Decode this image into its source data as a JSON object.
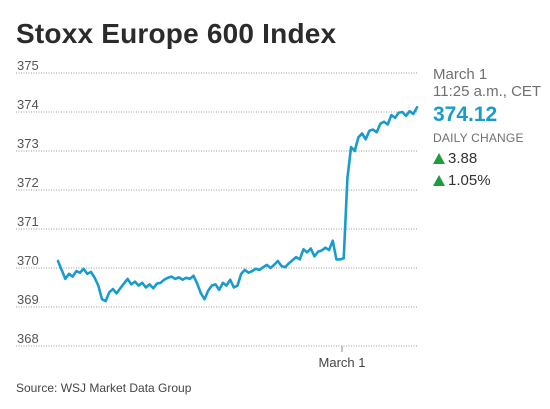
{
  "title": "Stoxx Europe 600 Index",
  "source": "Source: WSJ Market Data Group",
  "sidebar": {
    "date": "March 1",
    "time": "11:25 a.m., CET",
    "price": "374.12",
    "daily_change_label": "DAILY CHANGE",
    "change_points": "3.88",
    "change_percent": "1.05%"
  },
  "colors": {
    "line": "#1a9bd0",
    "up": "#1f9d3c",
    "grid": "#9a9a9a",
    "text": "#2b2b2b"
  },
  "chart_data": {
    "type": "line",
    "title": "Stoxx Europe 600 Index",
    "xlabel": "",
    "ylabel": "",
    "ylim": [
      368,
      375
    ],
    "yticks": [
      375,
      374,
      373,
      372,
      371,
      370,
      369,
      368
    ],
    "xtick_labels": [
      "March 1"
    ],
    "grid": true,
    "series": [
      {
        "values": [
          370.18,
          369.95,
          369.72,
          369.85,
          369.78,
          369.92,
          369.88,
          369.98,
          369.85,
          369.9,
          369.75,
          369.55,
          369.2,
          369.15,
          369.38,
          369.46,
          369.35,
          369.48,
          369.6,
          369.72,
          369.58,
          369.65,
          369.55,
          369.62,
          369.5,
          369.58,
          369.48,
          369.6,
          369.62,
          369.7,
          369.75,
          369.78,
          369.72,
          369.76,
          369.7,
          369.75,
          369.72,
          369.8,
          369.6,
          369.35,
          369.2,
          369.42,
          369.55,
          369.58,
          369.44,
          369.62,
          369.55,
          369.7,
          369.5,
          369.55,
          369.85,
          369.95,
          369.88,
          369.92,
          369.98,
          369.95,
          370.02,
          370.08,
          370.0,
          370.08,
          370.18,
          370.05,
          370.02,
          370.12,
          370.2,
          370.28,
          370.22,
          370.48,
          370.4,
          370.5,
          370.3,
          370.42,
          370.45,
          370.52,
          370.46,
          370.7,
          370.22,
          370.22,
          370.25,
          372.3,
          373.1,
          373.0,
          373.35,
          373.45,
          373.3,
          373.52,
          373.55,
          373.48,
          373.7,
          373.75,
          373.68,
          373.92,
          373.85,
          373.98,
          374.0,
          373.9,
          374.02,
          373.95,
          374.12
        ]
      }
    ]
  }
}
